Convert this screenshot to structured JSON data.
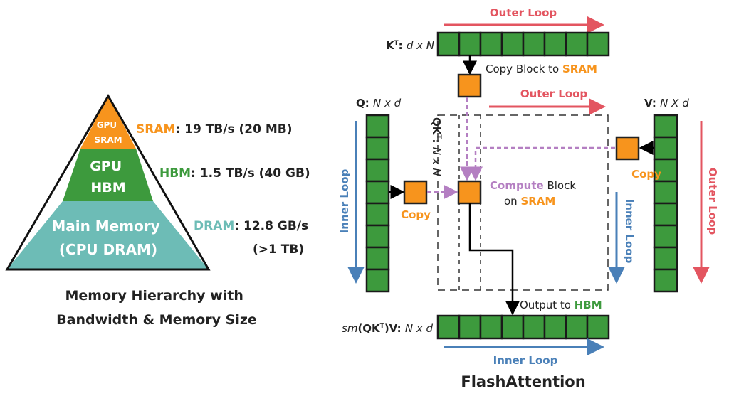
{
  "colors": {
    "sram_orange": "#f7941d",
    "hbm_green": "#3d9a3d",
    "dram_teal": "#6dbcb6",
    "outer_loop_red": "#e35560",
    "inner_loop_blue": "#4a80b8",
    "compute_purple": "#b47fc2"
  },
  "pyramid": {
    "sram_layer": [
      "GPU",
      "SRAM"
    ],
    "hbm_layer": [
      "GPU",
      "HBM"
    ],
    "dram_layer": [
      "Main Memory",
      "(CPU DRAM)"
    ],
    "sram_label": {
      "name": "SRAM",
      "value": ": 19 TB/s (20 MB)"
    },
    "hbm_label": {
      "name": "HBM",
      "value": ": 1.5 TB/s (40 GB)"
    },
    "dram_label": {
      "name": "DRAM",
      "value": ": 12.8 GB/s",
      "size": "(>1 TB)"
    },
    "caption": [
      "Memory Hierarchy with",
      "Bandwidth & Memory Size"
    ]
  },
  "flash": {
    "title": "FlashAttention",
    "kt_label": {
      "name": "K",
      "sup": "T",
      "dims": "d x N"
    },
    "q_label": {
      "name": "Q:",
      "dims": "N x d"
    },
    "v_label": {
      "name": "V:",
      "dims": "N X d"
    },
    "qkt_label": {
      "name": "QK",
      "sup": "T",
      "dims": "N x N"
    },
    "out_label": {
      "prefix": "sm",
      "name": "(QK",
      "sup": "T",
      "suffix": ")V:",
      "dims": "N x d"
    },
    "outer_loop": "Outer Loop",
    "inner_loop": "Inner Loop",
    "copy": "Copy",
    "copy_block": {
      "text": "Copy Block to ",
      "target": "SRAM"
    },
    "compute_block": {
      "word": "Compute",
      "rest": " Block",
      "line2": "on ",
      "target": "SRAM"
    },
    "output": {
      "text": "Output to ",
      "target": "HBM"
    }
  }
}
